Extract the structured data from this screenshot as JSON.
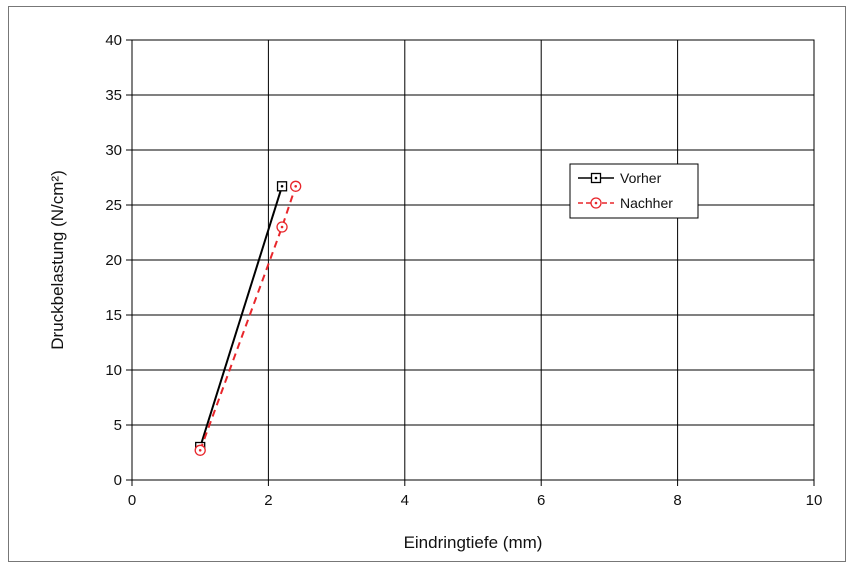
{
  "chart_data": {
    "type": "line",
    "title": "",
    "xlabel": "Eindringtiefe (mm)",
    "ylabel": "Druckbelastung (N/cm²)",
    "xlim": [
      0,
      10
    ],
    "ylim": [
      0,
      40
    ],
    "xticks": [
      "0",
      "2",
      "4",
      "6",
      "8",
      "10"
    ],
    "yticks": [
      "0",
      "5",
      "10",
      "15",
      "20",
      "25",
      "30",
      "35",
      "40"
    ],
    "grid": true,
    "legend_position": "right",
    "series": [
      {
        "name": "Vorher",
        "color": "#000000",
        "marker": "square-dot",
        "line_style": "solid",
        "points": [
          {
            "x": 1.0,
            "y": 3.0
          },
          {
            "x": 2.2,
            "y": 26.7
          }
        ]
      },
      {
        "name": "Nachher",
        "color": "#e8262b",
        "marker": "circle-dot",
        "line_style": "dashed",
        "points": [
          {
            "x": 1.0,
            "y": 2.7
          },
          {
            "x": 2.2,
            "y": 23.0
          },
          {
            "x": 2.4,
            "y": 26.7
          }
        ]
      }
    ]
  }
}
